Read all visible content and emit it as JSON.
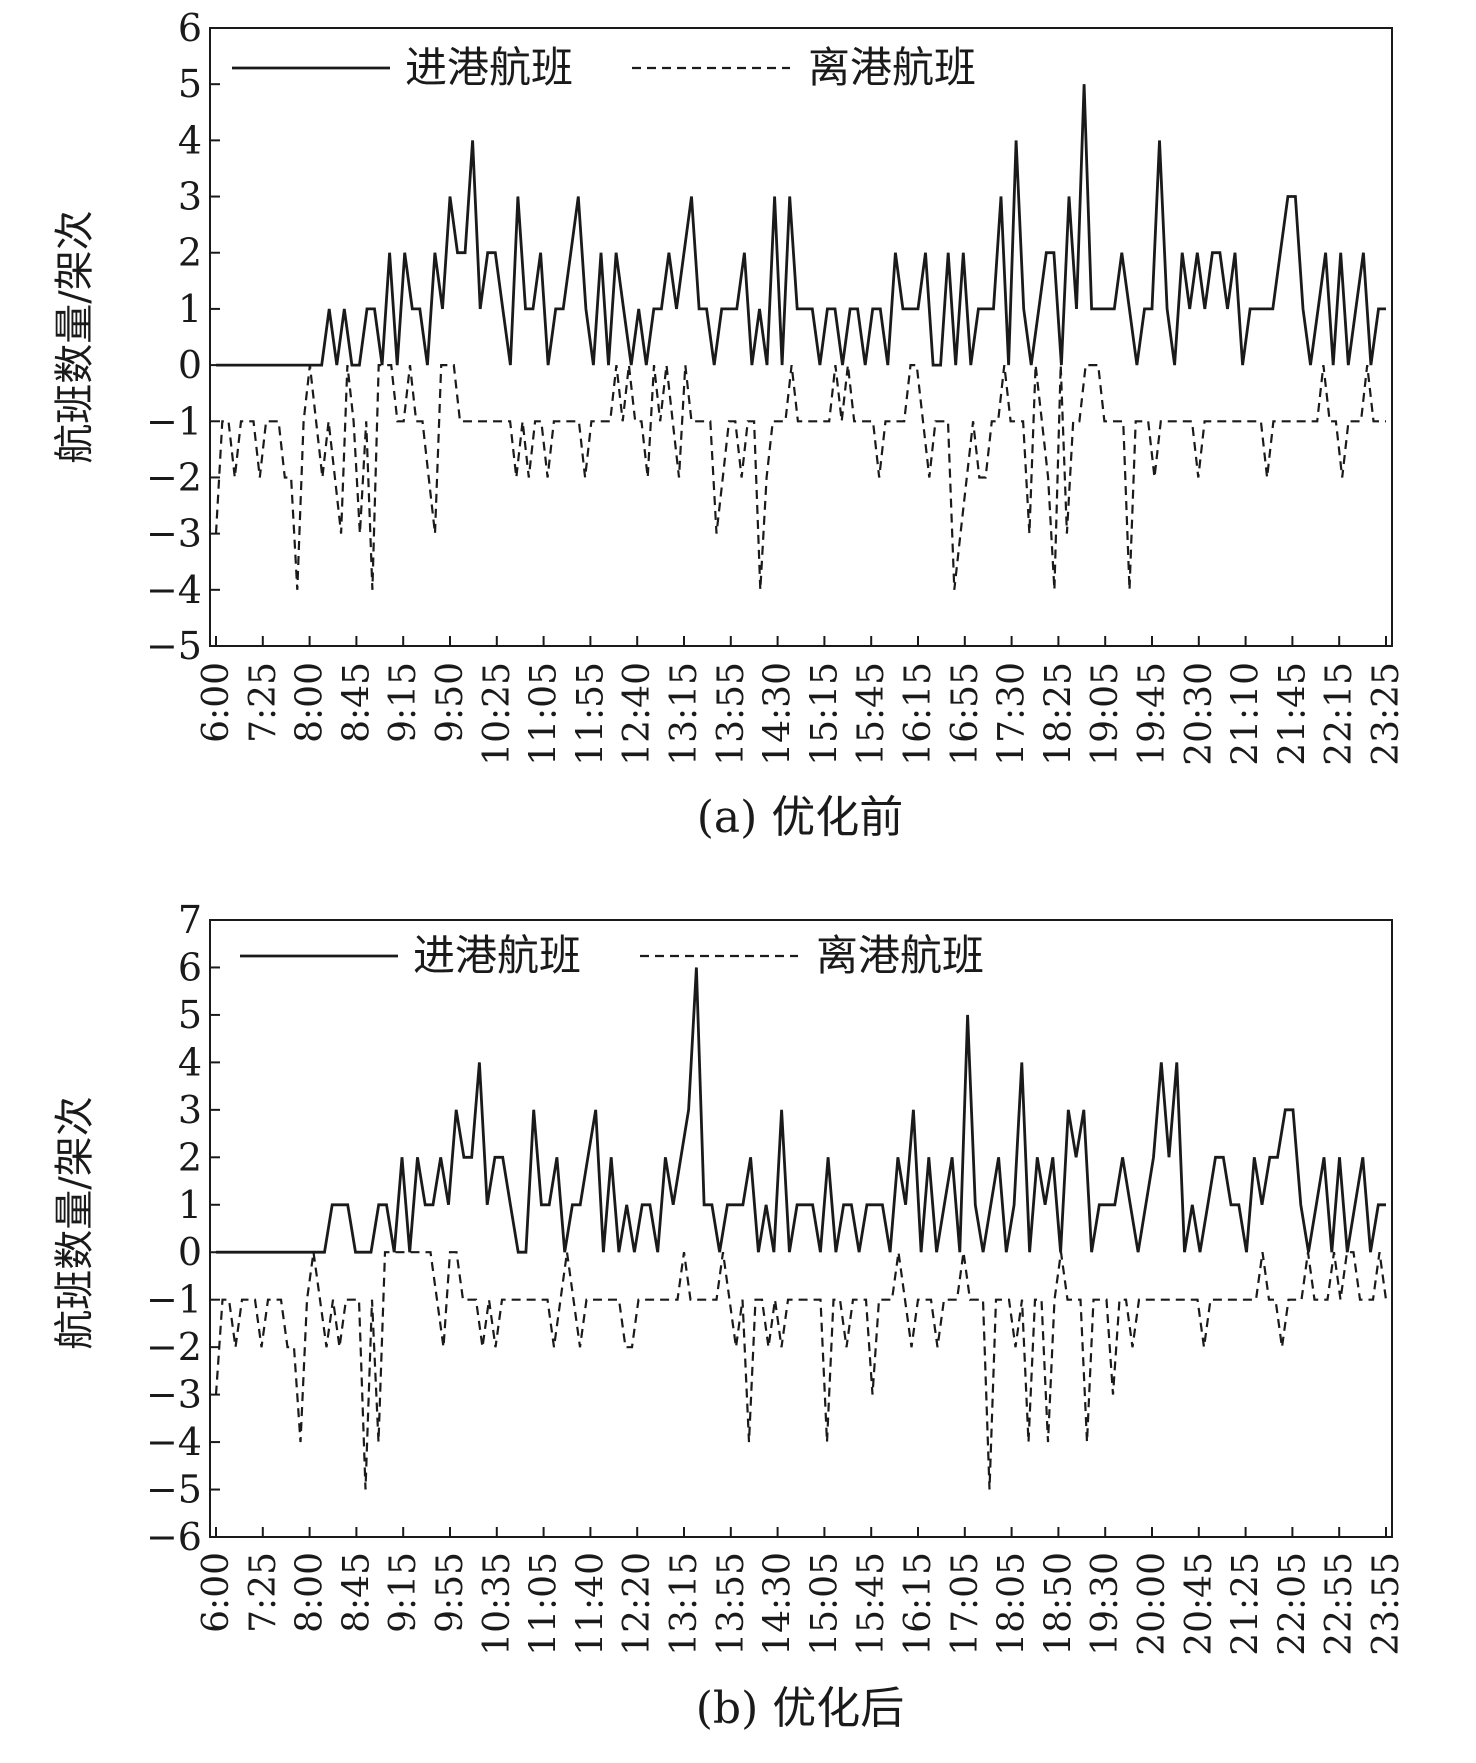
{
  "chart_data": [
    {
      "type": "line",
      "caption": "(a) 优化前",
      "ylabel": "航班数量/架次",
      "ylim": [
        -5,
        6
      ],
      "yticks": [
        -5,
        -4,
        -3,
        -2,
        -1,
        0,
        1,
        2,
        3,
        4,
        5,
        6
      ],
      "xtick_labels": [
        "6:00",
        "7:25",
        "8:00",
        "8:45",
        "9:15",
        "9:50",
        "10:25",
        "11:05",
        "11:55",
        "12:40",
        "13:15",
        "13:55",
        "14:30",
        "15:15",
        "15:45",
        "16:15",
        "16:55",
        "17:30",
        "18:25",
        "19:05",
        "19:45",
        "20:30",
        "21:10",
        "21:45",
        "22:15",
        "23:25"
      ],
      "legend": [
        "进港航班",
        "离港航班"
      ],
      "series": [
        {
          "name": "进港航班",
          "style": "solid",
          "values": [
            0,
            0,
            0,
            0,
            0,
            0,
            0,
            0,
            0,
            0,
            0,
            0,
            0,
            0,
            0,
            1,
            0,
            1,
            0,
            0,
            1,
            1,
            0,
            2,
            0,
            2,
            1,
            1,
            0,
            2,
            1,
            3,
            2,
            2,
            4,
            1,
            2,
            2,
            1,
            0,
            3,
            1,
            1,
            2,
            0,
            1,
            1,
            2,
            3,
            1,
            0,
            2,
            0,
            2,
            1,
            0,
            1,
            0,
            1,
            1,
            2,
            1,
            2,
            3,
            1,
            1,
            0,
            1,
            1,
            1,
            2,
            0,
            1,
            0,
            3,
            0,
            3,
            1,
            1,
            1,
            0,
            1,
            1,
            0,
            1,
            1,
            0,
            1,
            1,
            0,
            2,
            1,
            1,
            1,
            2,
            0,
            0,
            2,
            0,
            2,
            0,
            1,
            1,
            1,
            3,
            0,
            4,
            1,
            0,
            1,
            2,
            2,
            0,
            3,
            1,
            5,
            1,
            1,
            1,
            1,
            2,
            1,
            0,
            1,
            1,
            4,
            1,
            0,
            2,
            1,
            2,
            1,
            2,
            2,
            1,
            2,
            0,
            1,
            1,
            1,
            1,
            2,
            3,
            3,
            1,
            0,
            1,
            2,
            0,
            2,
            0,
            1,
            2,
            0,
            1,
            1
          ]
        },
        {
          "name": "离港航班",
          "style": "dashed",
          "values": [
            -3,
            -1,
            -1,
            -2,
            -1,
            -1,
            -1,
            -2,
            -1,
            -1,
            -1,
            -2,
            -2,
            -4,
            -1,
            0,
            -1,
            -2,
            -1,
            -2,
            -3,
            0,
            -1,
            -3,
            -1,
            -4,
            0,
            0,
            0,
            -1,
            -1,
            0,
            -1,
            -1,
            -2,
            -3,
            0,
            0,
            0,
            -1,
            -1,
            -1,
            -1,
            -1,
            -1,
            -1,
            -1,
            -1,
            -2,
            -1,
            -2,
            -1,
            -1,
            -2,
            -1,
            -1,
            -1,
            -1,
            -1,
            -2,
            -1,
            -1,
            -1,
            -1,
            0,
            -1,
            0,
            -1,
            -1,
            -2,
            0,
            -1,
            0,
            -1,
            -2,
            0,
            -1,
            -1,
            -1,
            -1,
            -3,
            -2,
            -1,
            -1,
            -2,
            -1,
            -1,
            -4,
            -2,
            -1,
            -1,
            -1,
            0,
            -1,
            -1,
            -1,
            -1,
            -1,
            -1,
            0,
            -1,
            0,
            -1,
            -1,
            -1,
            -1,
            -2,
            -1,
            -1,
            -1,
            -1,
            0,
            0,
            -1,
            -2,
            -1,
            -1,
            -1,
            -4,
            -3,
            -2,
            -1,
            -2,
            -2,
            -1,
            -1,
            0,
            -1,
            -1,
            -1,
            -3,
            0,
            -1,
            -2,
            -4,
            0,
            -3,
            -1,
            -1,
            0,
            0,
            0,
            -1,
            -1,
            -1,
            -1,
            -4,
            -1,
            -1,
            -1,
            -2,
            -1,
            -1,
            -1,
            -1,
            -1,
            -1,
            -2,
            -1,
            -1,
            -1,
            -1,
            -1,
            -1,
            -1,
            -1,
            -1,
            -1,
            -2,
            -1,
            -1,
            -1,
            -1,
            -1,
            -1,
            -1,
            -1,
            0,
            -1,
            -1,
            -2,
            -1,
            -1,
            -1,
            0,
            -1,
            -1,
            -1
          ]
        }
      ]
    },
    {
      "type": "line",
      "caption": "(b) 优化后",
      "ylabel": "航班数量/架次",
      "ylim": [
        -6,
        7
      ],
      "yticks": [
        -6,
        -5,
        -4,
        -3,
        -2,
        -1,
        0,
        1,
        2,
        3,
        4,
        5,
        6,
        7
      ],
      "xtick_labels": [
        "6:00",
        "7:25",
        "8:00",
        "8:45",
        "9:15",
        "9:55",
        "10:35",
        "11:05",
        "11:40",
        "12:20",
        "13:15",
        "13:55",
        "14:30",
        "15:05",
        "15:45",
        "16:15",
        "17:05",
        "18:05",
        "18:50",
        "19:30",
        "20:00",
        "20:45",
        "21:25",
        "22:05",
        "22:55",
        "23:55"
      ],
      "legend": [
        "进港航班",
        "离港航班"
      ],
      "series": [
        {
          "name": "进港航班",
          "style": "solid",
          "values": [
            0,
            0,
            0,
            0,
            0,
            0,
            0,
            0,
            0,
            0,
            0,
            0,
            0,
            0,
            0,
            1,
            1,
            1,
            0,
            0,
            0,
            1,
            1,
            0,
            2,
            0,
            2,
            1,
            1,
            2,
            1,
            3,
            2,
            2,
            4,
            1,
            2,
            2,
            1,
            0,
            0,
            3,
            1,
            1,
            2,
            0,
            1,
            1,
            2,
            3,
            0,
            2,
            0,
            1,
            0,
            1,
            1,
            0,
            2,
            1,
            2,
            3,
            6,
            1,
            1,
            0,
            1,
            1,
            1,
            2,
            0,
            1,
            0,
            3,
            0,
            1,
            1,
            1,
            0,
            2,
            0,
            1,
            1,
            0,
            1,
            1,
            1,
            0,
            2,
            1,
            3,
            0,
            2,
            0,
            1,
            2,
            0,
            5,
            1,
            0,
            1,
            2,
            0,
            1,
            4,
            0,
            2,
            1,
            2,
            0,
            3,
            2,
            3,
            0,
            1,
            1,
            1,
            2,
            1,
            0,
            1,
            2,
            4,
            2,
            4,
            0,
            1,
            0,
            1,
            2,
            2,
            1,
            1,
            0,
            2,
            1,
            2,
            2,
            3,
            3,
            1,
            0,
            1,
            2,
            0,
            2,
            0,
            1,
            2,
            0,
            1,
            1
          ]
        },
        {
          "name": "离港航班",
          "style": "dashed",
          "values": [
            -3,
            -1,
            -1,
            -2,
            -1,
            -1,
            -1,
            -2,
            -1,
            -1,
            -1,
            -2,
            -2,
            -4,
            -1,
            0,
            -1,
            -2,
            -1,
            -2,
            -1,
            -1,
            -1,
            -5,
            -1,
            -4,
            0,
            0,
            0,
            0,
            0,
            0,
            0,
            0,
            -1,
            -2,
            0,
            0,
            -1,
            -1,
            -1,
            -2,
            -1,
            -2,
            -1,
            -1,
            -1,
            -1,
            -1,
            -1,
            -1,
            -1,
            -2,
            -1,
            0,
            -1,
            -2,
            -1,
            -1,
            -1,
            -1,
            -1,
            -1,
            -2,
            -2,
            -1,
            -1,
            -1,
            -1,
            -1,
            -1,
            -1,
            0,
            -1,
            -1,
            -1,
            -1,
            -1,
            0,
            -1,
            -2,
            -1,
            -4,
            -1,
            -1,
            -2,
            -1,
            -2,
            -1,
            -1,
            -1,
            -1,
            -1,
            -1,
            -4,
            -1,
            -1,
            -2,
            -1,
            -1,
            -1,
            -3,
            -1,
            -1,
            -1,
            0,
            -1,
            -2,
            -1,
            -1,
            -1,
            -2,
            -1,
            -1,
            -1,
            0,
            -1,
            -1,
            -1,
            -5,
            -1,
            -1,
            -1,
            -2,
            -1,
            -4,
            -1,
            -1,
            -4,
            -1,
            0,
            -1,
            -1,
            -1,
            -4,
            -1,
            -1,
            -1,
            -3,
            -1,
            -1,
            -2,
            -1,
            -1,
            -1,
            -1,
            -1,
            -1,
            -1,
            -1,
            -1,
            -1,
            -2,
            -1,
            -1,
            -1,
            -1,
            -1,
            -1,
            -1,
            -1,
            0,
            -1,
            -1,
            -2,
            -1,
            -1,
            -1,
            0,
            -1,
            -1,
            -1,
            0,
            -1,
            0,
            0,
            -1,
            -1,
            -1,
            0,
            -1
          ]
        }
      ]
    }
  ]
}
